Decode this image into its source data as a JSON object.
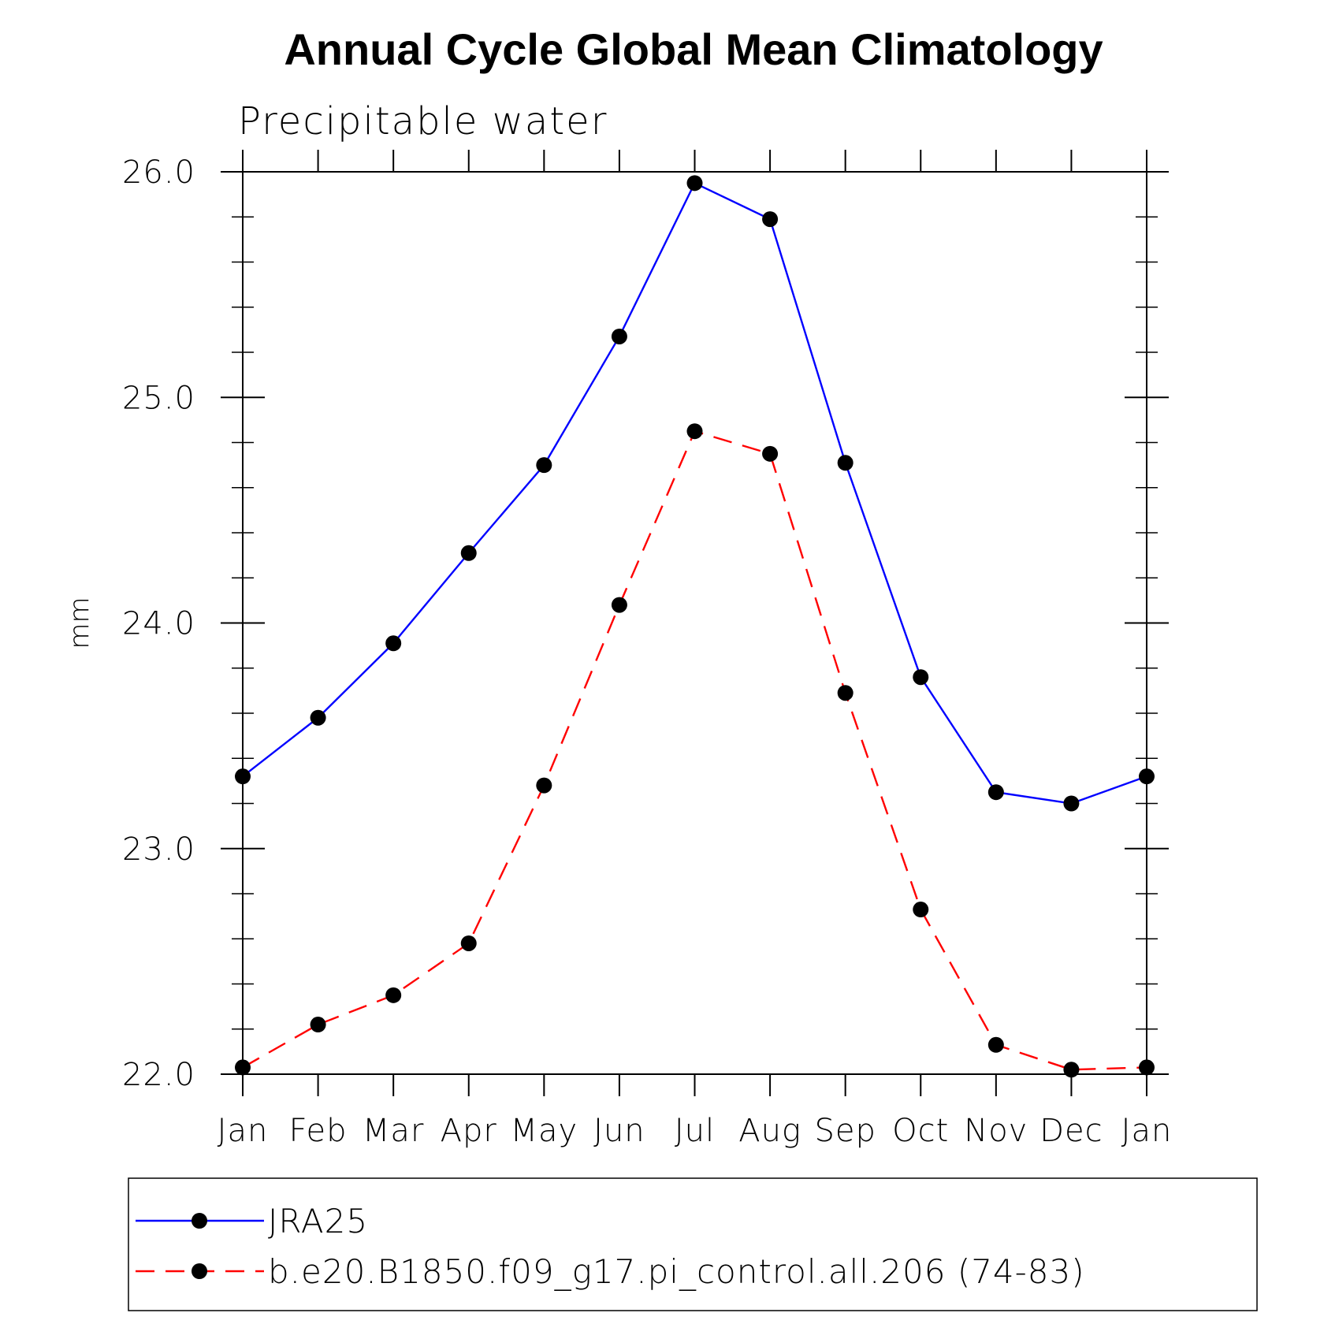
{
  "chart_data": {
    "type": "line",
    "title": "Annual Cycle Global Mean Climatology",
    "subtitle": "Precipitable water",
    "xlabel": "",
    "ylabel": "mm",
    "categories": [
      "Jan",
      "Feb",
      "Mar",
      "Apr",
      "May",
      "Jun",
      "Jul",
      "Aug",
      "Sep",
      "Oct",
      "Nov",
      "Dec",
      "Jan"
    ],
    "ylim": [
      22.0,
      26.0
    ],
    "yticks": [
      "22.0",
      "23.0",
      "24.0",
      "25.0",
      "26.0"
    ],
    "yminor_step": 0.2,
    "grid": false,
    "legend_position": "bottom",
    "series": [
      {
        "name": "JRA25",
        "color": "#0000ff",
        "dash": "solid",
        "marker": "filled-circle",
        "values": [
          23.32,
          23.58,
          23.91,
          24.31,
          24.7,
          25.27,
          25.95,
          25.79,
          24.71,
          23.76,
          23.25,
          23.2,
          23.32
        ]
      },
      {
        "name": "b.e20.B1850.f09_g17.pi_control.all.206 (74-83)",
        "color": "#ff0000",
        "dash": "dashed",
        "marker": "filled-circle",
        "values": [
          22.03,
          22.22,
          22.35,
          22.58,
          23.28,
          24.08,
          24.85,
          24.75,
          23.69,
          22.73,
          22.13,
          22.02,
          22.03
        ]
      }
    ]
  }
}
